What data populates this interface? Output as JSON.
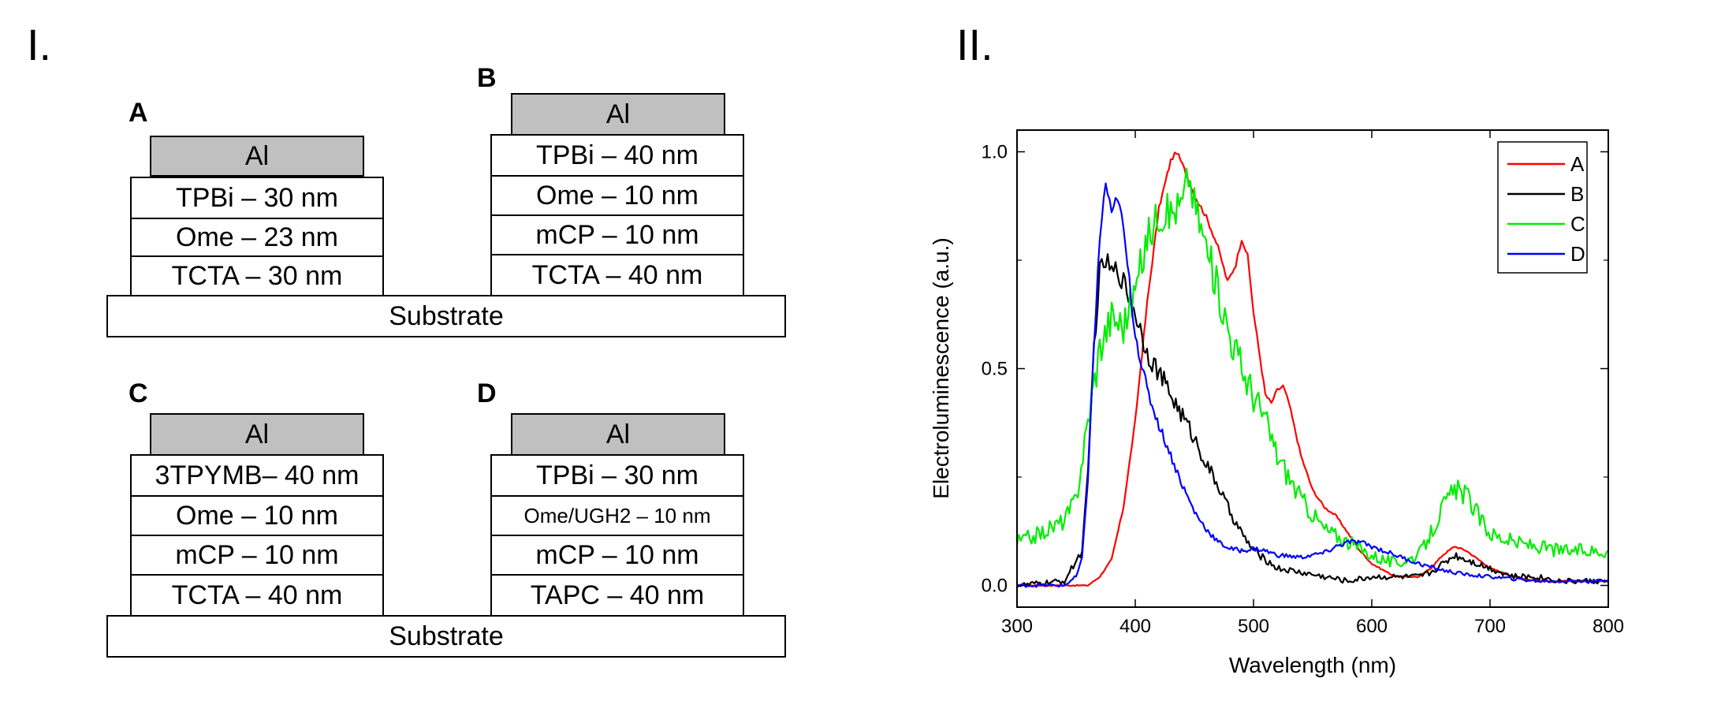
{
  "panel_labels": {
    "left": "I.",
    "right": "II."
  },
  "devices": [
    {
      "letter": "A",
      "al": "Al",
      "layers": [
        "TPBi – 30 nm",
        "Ome – 23 nm",
        "TCTA – 30 nm"
      ],
      "substrate": "Substrate"
    },
    {
      "letter": "B",
      "al": "Al",
      "layers": [
        "TPBi – 40 nm",
        "Ome – 10 nm",
        "mCP – 10 nm",
        "TCTA – 40 nm"
      ]
    },
    {
      "letter": "C",
      "al": "Al",
      "layers": [
        "3TPYMB– 40 nm",
        "Ome – 10 nm",
        "mCP – 10 nm",
        "TCTA – 40 nm"
      ],
      "substrate": "Substrate"
    },
    {
      "letter": "D",
      "al": "Al",
      "layers": [
        "TPBi – 30 nm",
        "Ome/UGH2 – 10 nm",
        "mCP – 10 nm",
        "TAPC – 40 nm"
      ]
    }
  ],
  "chart_data": {
    "type": "line",
    "xlabel": "Wavelength (nm)",
    "ylabel": "Electroluminescence (a.u.)",
    "xlim": [
      300,
      800
    ],
    "ylim": [
      -0.05,
      1.05
    ],
    "xticks": [
      300,
      400,
      500,
      600,
      700,
      800
    ],
    "yticks": [
      0.0,
      0.5,
      1.0
    ],
    "ytick_labels": [
      "0.0",
      "0.5",
      "1.0"
    ],
    "legend_position": "top-right",
    "series": [
      {
        "name": "A",
        "color": "#ff0000",
        "x": [
          300,
          340,
          360,
          370,
          380,
          390,
          400,
          410,
          420,
          430,
          435,
          440,
          450,
          460,
          470,
          478,
          485,
          490,
          495,
          500,
          510,
          515,
          520,
          525,
          530,
          540,
          550,
          560,
          570,
          580,
          590,
          600,
          620,
          640,
          650,
          660,
          670,
          680,
          690,
          700,
          720,
          740,
          760,
          780,
          800
        ],
        "y": [
          0.0,
          0.0,
          0.0,
          0.02,
          0.06,
          0.18,
          0.38,
          0.65,
          0.87,
          0.98,
          1.0,
          0.97,
          0.9,
          0.85,
          0.78,
          0.7,
          0.74,
          0.8,
          0.76,
          0.63,
          0.44,
          0.42,
          0.45,
          0.46,
          0.42,
          0.3,
          0.22,
          0.18,
          0.16,
          0.12,
          0.08,
          0.05,
          0.02,
          0.02,
          0.04,
          0.07,
          0.09,
          0.08,
          0.06,
          0.04,
          0.02,
          0.01,
          0.01,
          0.01,
          0.01
        ]
      },
      {
        "name": "B",
        "color": "#000000",
        "x": [
          300,
          340,
          355,
          360,
          365,
          370,
          375,
          380,
          385,
          390,
          400,
          410,
          420,
          430,
          440,
          450,
          460,
          470,
          480,
          490,
          500,
          520,
          540,
          560,
          580,
          600,
          620,
          640,
          650,
          660,
          670,
          680,
          690,
          700,
          720,
          740,
          760,
          780,
          800
        ],
        "y": [
          0.0,
          0.01,
          0.08,
          0.25,
          0.55,
          0.72,
          0.75,
          0.72,
          0.73,
          0.7,
          0.63,
          0.54,
          0.49,
          0.44,
          0.39,
          0.34,
          0.28,
          0.23,
          0.17,
          0.12,
          0.08,
          0.04,
          0.03,
          0.02,
          0.01,
          0.02,
          0.02,
          0.02,
          0.03,
          0.05,
          0.07,
          0.06,
          0.05,
          0.04,
          0.02,
          0.02,
          0.01,
          0.01,
          0.01
        ]
      },
      {
        "name": "C",
        "color": "#00ee00",
        "x": [
          300,
          320,
          340,
          350,
          360,
          370,
          380,
          390,
          400,
          410,
          420,
          430,
          440,
          445,
          450,
          460,
          470,
          480,
          490,
          500,
          510,
          520,
          540,
          560,
          580,
          600,
          620,
          640,
          650,
          660,
          670,
          680,
          690,
          700,
          720,
          740,
          760,
          780,
          800
        ],
        "y": [
          0.1,
          0.12,
          0.15,
          0.2,
          0.38,
          0.55,
          0.62,
          0.6,
          0.68,
          0.8,
          0.86,
          0.86,
          0.88,
          0.95,
          0.88,
          0.78,
          0.68,
          0.58,
          0.5,
          0.44,
          0.38,
          0.3,
          0.2,
          0.13,
          0.1,
          0.07,
          0.05,
          0.07,
          0.12,
          0.18,
          0.22,
          0.21,
          0.16,
          0.12,
          0.1,
          0.09,
          0.08,
          0.08,
          0.08
        ]
      },
      {
        "name": "D",
        "color": "#0000ff",
        "x": [
          300,
          340,
          350,
          355,
          360,
          365,
          370,
          375,
          380,
          385,
          390,
          395,
          400,
          410,
          420,
          430,
          440,
          450,
          460,
          470,
          480,
          490,
          500,
          510,
          520,
          540,
          560,
          570,
          580,
          590,
          600,
          620,
          640,
          660,
          680,
          700,
          720,
          740,
          760,
          780,
          800
        ],
        "y": [
          0.0,
          0.0,
          0.02,
          0.06,
          0.25,
          0.55,
          0.8,
          0.93,
          0.85,
          0.9,
          0.82,
          0.7,
          0.58,
          0.45,
          0.37,
          0.3,
          0.23,
          0.17,
          0.13,
          0.1,
          0.085,
          0.08,
          0.085,
          0.08,
          0.07,
          0.065,
          0.075,
          0.09,
          0.1,
          0.1,
          0.09,
          0.07,
          0.05,
          0.035,
          0.025,
          0.02,
          0.015,
          0.01,
          0.01,
          0.01,
          0.01
        ]
      }
    ]
  }
}
